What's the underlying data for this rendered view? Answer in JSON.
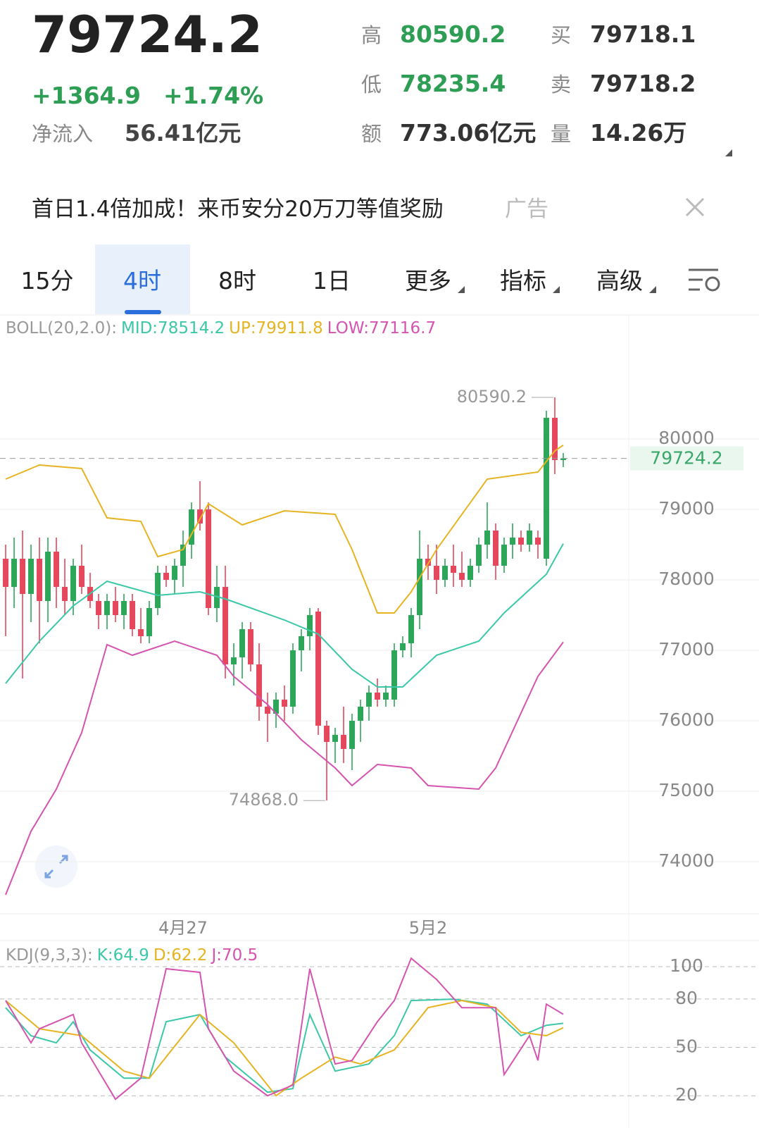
{
  "quote": {
    "price": "79724.2",
    "change": "+1364.9",
    "change_pct": "+1.74%",
    "net_inflow_label": "净流入",
    "net_inflow": "56.41亿元",
    "stats": [
      {
        "label": "高",
        "value": "80590.2"
      },
      {
        "label": "买",
        "value": "79718.1"
      },
      {
        "label": "低",
        "value": "78235.4"
      },
      {
        "label": "卖",
        "value": "79718.2"
      },
      {
        "label": "额",
        "value": "773.06亿元"
      },
      {
        "label": "量",
        "value": "14.26万"
      }
    ]
  },
  "ad": {
    "text": "首日1.4倍加成！来币安分20万刀等值奖励",
    "tag": "广告"
  },
  "tabs": [
    "15分",
    "4时",
    "8时",
    "1日",
    "更多",
    "指标",
    "高级"
  ],
  "chart_data": [
    {
      "type": "candlestick",
      "indicator": "BOLL(20,2.0):",
      "legend": [
        "MID:78514.2",
        "UP:79911.8",
        "LOW:77116.7"
      ],
      "up_color": "#2ea65a",
      "down_color": "#e5475c",
      "ohlc": [
        [
          78300,
          78500,
          77200,
          77900
        ],
        [
          77900,
          78600,
          77600,
          78300
        ],
        [
          78300,
          78700,
          76600,
          77800
        ],
        [
          77800,
          78500,
          77400,
          78300
        ],
        [
          78300,
          78600,
          77100,
          77700
        ],
        [
          77700,
          78600,
          77400,
          78400
        ],
        [
          78400,
          78600,
          77600,
          77900
        ],
        [
          77900,
          78300,
          77500,
          77700
        ],
        [
          77700,
          78300,
          77500,
          78200
        ],
        [
          78200,
          78500,
          77800,
          77900
        ],
        [
          77900,
          78100,
          77600,
          77700
        ],
        [
          77700,
          77800,
          77300,
          77500
        ],
        [
          77500,
          77800,
          77300,
          77700
        ],
        [
          77700,
          77900,
          77400,
          77500
        ],
        [
          77500,
          77800,
          77300,
          77700
        ],
        [
          77700,
          77800,
          77200,
          77300
        ],
        [
          77300,
          77600,
          77100,
          77200
        ],
        [
          77200,
          77700,
          77100,
          77600
        ],
        [
          77600,
          78200,
          77500,
          78100
        ],
        [
          78100,
          78200,
          77900,
          78000
        ],
        [
          78000,
          78300,
          77800,
          78200
        ],
        [
          78200,
          78700,
          77900,
          78500
        ],
        [
          78500,
          79100,
          78300,
          79000
        ],
        [
          79000,
          79400,
          78700,
          78800
        ],
        [
          79000,
          79100,
          77500,
          77600
        ],
        [
          77600,
          78200,
          77400,
          77900
        ],
        [
          77900,
          78200,
          76600,
          76800
        ],
        [
          76800,
          77100,
          76500,
          76900
        ],
        [
          76900,
          77400,
          76600,
          77300
        ],
        [
          77300,
          77400,
          76700,
          76800
        ],
        [
          76800,
          77100,
          76000,
          76200
        ],
        [
          76200,
          76400,
          75700,
          76100
        ],
        [
          76100,
          76400,
          75900,
          76300
        ],
        [
          76300,
          76500,
          76000,
          76200
        ],
        [
          76200,
          77100,
          76100,
          77000
        ],
        [
          77000,
          77300,
          76700,
          77200
        ],
        [
          77200,
          77600,
          77000,
          77500
        ],
        [
          77550,
          77600,
          75800,
          75930
        ],
        [
          75930,
          76000,
          74868,
          75700
        ],
        [
          75700,
          75900,
          75400,
          75800
        ],
        [
          75800,
          76200,
          75400,
          75600
        ],
        [
          75600,
          76100,
          75300,
          76000
        ],
        [
          76000,
          76300,
          75700,
          76200
        ],
        [
          76200,
          76500,
          76000,
          76400
        ],
        [
          76400,
          76600,
          76200,
          76300
        ],
        [
          76300,
          76500,
          76200,
          76400
        ],
        [
          76300,
          77100,
          76200,
          77000
        ],
        [
          77000,
          77200,
          76900,
          77100
        ],
        [
          77100,
          77600,
          76900,
          77500
        ],
        [
          77500,
          78700,
          77300,
          78300
        ],
        [
          78300,
          78500,
          78000,
          78200
        ],
        [
          78200,
          78500,
          77800,
          78000
        ],
        [
          78000,
          78300,
          77900,
          78200
        ],
        [
          78200,
          78500,
          77900,
          78100
        ],
        [
          78100,
          78400,
          77900,
          78000
        ],
        [
          78000,
          78300,
          77900,
          78200
        ],
        [
          78200,
          78600,
          78100,
          78500
        ],
        [
          78500,
          79100,
          78300,
          78700
        ],
        [
          78700,
          78800,
          78000,
          78200
        ],
        [
          78200,
          78600,
          78100,
          78500
        ],
        [
          78500,
          78800,
          78300,
          78600
        ],
        [
          78600,
          78700,
          78400,
          78500
        ],
        [
          78500,
          78800,
          78400,
          78700
        ],
        [
          78600,
          78700,
          78300,
          78500
        ],
        [
          78300,
          80400,
          78200,
          80300
        ],
        [
          80300,
          80590.2,
          79500,
          79700
        ],
        [
          79700,
          79800,
          79600,
          79724.2
        ]
      ],
      "series": [
        {
          "color": "#3cc8a8",
          "x": [
            0,
            4,
            8,
            12,
            18,
            23,
            26,
            33,
            37,
            41,
            44,
            47,
            51,
            56,
            59,
            64,
            66
          ],
          "values": [
            76530,
            77130,
            77630,
            77980,
            77780,
            77830,
            77730,
            77430,
            77230,
            76730,
            76480,
            76480,
            76930,
            77130,
            77530,
            78080,
            78514.2
          ]
        },
        {
          "color": "#e6b422",
          "x": [
            0,
            3,
            4,
            9,
            12,
            16,
            18,
            21,
            24,
            28,
            33,
            39,
            41,
            44,
            46,
            48,
            51,
            57,
            63,
            65,
            66
          ],
          "values": [
            79430,
            79580,
            79630,
            79580,
            78880,
            78830,
            78330,
            78430,
            79080,
            78780,
            78980,
            78930,
            78430,
            77530,
            77530,
            77830,
            78430,
            79430,
            79530,
            79830,
            79911.8
          ]
        },
        {
          "color": "#d454b0",
          "x": [
            0,
            3,
            6,
            9,
            12,
            15,
            20,
            25,
            27,
            31,
            35,
            39,
            41,
            44,
            48,
            50,
            56,
            58,
            63,
            66
          ],
          "values": [
            73530,
            74430,
            75030,
            75830,
            77080,
            76930,
            77130,
            76930,
            76630,
            76230,
            75730,
            75330,
            75080,
            75380,
            75330,
            75080,
            75030,
            75330,
            76630,
            77116.7
          ]
        }
      ],
      "xlim": [
        -0.67,
        73.75
      ],
      "xticks": [
        {
          "value": 21,
          "label": "4月27"
        },
        {
          "value": 50,
          "label": "5月2"
        }
      ],
      "ylim": [
        73280,
        81730
      ],
      "yticks": [
        74000,
        75000,
        76000,
        77000,
        78000,
        79000,
        80000
      ],
      "price_line": 79724.2,
      "annotations": [
        {
          "x": 65,
          "value": 80590.2
        },
        {
          "x": 38,
          "value": 74868,
          "label": "74868.0"
        }
      ]
    },
    {
      "type": "line",
      "indicator": "KDJ(9,3,3):",
      "legend": [
        "K:64.9",
        "D:62.2",
        "J:70.5"
      ],
      "series": [
        {
          "color": "#3cc8a8",
          "x": [
            0,
            3,
            6,
            8,
            10,
            14,
            17,
            19,
            23,
            26,
            31,
            34,
            36,
            39,
            43,
            46,
            48,
            53,
            57,
            61,
            64,
            66
          ],
          "values": [
            74.6,
            57.2,
            52.8,
            65.9,
            48.4,
            30.9,
            30.9,
            65.9,
            70.3,
            44.0,
            22.2,
            24.4,
            70.3,
            35.3,
            39.7,
            57.2,
            79.0,
            79.9,
            76.8,
            57.2,
            63.7,
            64.9
          ]
        },
        {
          "color": "#e6b422",
          "x": [
            0,
            4,
            9,
            14,
            17,
            21,
            23,
            27,
            32,
            35,
            39,
            42,
            46,
            50,
            54,
            58,
            61,
            64,
            66
          ],
          "values": [
            79.0,
            61.5,
            57.2,
            35.3,
            30.9,
            57.2,
            70.3,
            52.8,
            20,
            30.9,
            44.0,
            39.7,
            48.4,
            74.6,
            79.0,
            74.6,
            59.3,
            57.2,
            62.2
          ]
        },
        {
          "color": "#d454b0",
          "x": [
            0,
            1,
            3,
            4,
            8,
            9,
            13,
            16,
            19,
            23,
            24,
            27,
            31,
            34,
            36,
            39,
            41,
            44,
            46,
            48,
            51,
            54,
            58,
            59,
            62,
            63,
            64,
            66
          ],
          "values": [
            79.0,
            70.3,
            52.8,
            61.5,
            70.3,
            52.8,
            17.8,
            30.9,
            98.7,
            96.5,
            61.5,
            35.3,
            20,
            26.6,
            98.7,
            39.7,
            41.9,
            65.9,
            79.0,
            105.2,
            92.1,
            74.6,
            74.6,
            33.1,
            57.2,
            41.9,
            76.8,
            70.5
          ]
        }
      ],
      "xlim": [
        -0.67,
        73.75
      ],
      "ylim": [
        0,
        114
      ],
      "yticks": [
        20,
        50,
        80,
        100
      ]
    }
  ]
}
